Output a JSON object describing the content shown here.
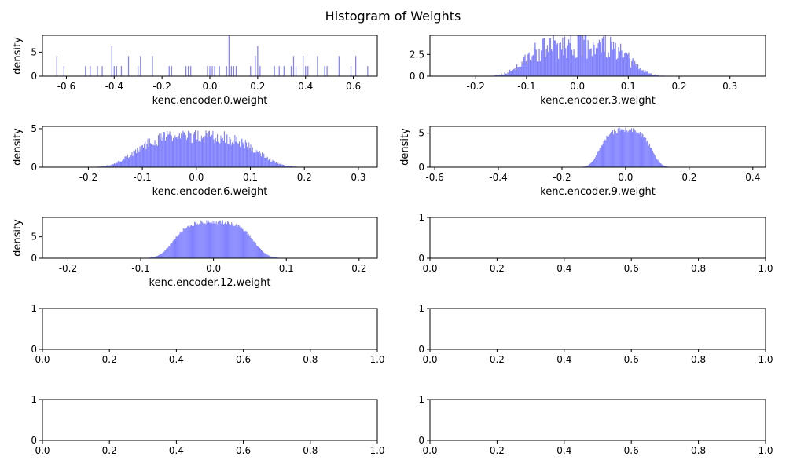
{
  "figure": {
    "title": "Histogram of Weights"
  },
  "chart_data": [
    {
      "type": "bar",
      "name": "hist-encoder-0",
      "xlabel": "kenc.encoder.0.weight",
      "ylabel": "density",
      "xlim": [
        -0.7,
        0.7
      ],
      "ylim": [
        0,
        8.5
      ],
      "xticks": [
        -0.6,
        -0.4,
        -0.2,
        0.0,
        0.2,
        0.4,
        0.6
      ],
      "yticks": [
        0,
        5
      ],
      "bar_color": "#8080ff",
      "bins": {
        "x": [
          -0.64,
          -0.61,
          -0.52,
          -0.5,
          -0.47,
          -0.45,
          -0.41,
          -0.4,
          -0.39,
          -0.37,
          -0.34,
          -0.3,
          -0.29,
          -0.24,
          -0.17,
          -0.16,
          -0.1,
          -0.09,
          -0.08,
          -0.01,
          0.0,
          0.01,
          0.02,
          0.04,
          0.07,
          0.08,
          0.09,
          0.1,
          0.11,
          0.17,
          0.19,
          0.2,
          0.21,
          0.27,
          0.29,
          0.31,
          0.34,
          0.35,
          0.36,
          0.39,
          0.4,
          0.41,
          0.45,
          0.48,
          0.49,
          0.54,
          0.59,
          0.61,
          0.66
        ],
        "y": [
          4.2,
          2.1,
          2.1,
          2.1,
          2.1,
          2.1,
          6.3,
          2.1,
          2.1,
          2.1,
          4.2,
          2.1,
          4.2,
          4.2,
          2.1,
          2.1,
          2.1,
          2.1,
          2.1,
          2.1,
          2.1,
          2.1,
          2.1,
          2.1,
          2.1,
          8.4,
          2.1,
          2.1,
          2.1,
          2.1,
          4.2,
          6.3,
          2.1,
          2.1,
          2.1,
          2.1,
          2.1,
          4.2,
          2.1,
          4.2,
          2.1,
          2.1,
          4.2,
          2.1,
          2.1,
          4.2,
          2.1,
          4.2,
          2.1
        ],
        "width": 0.004
      }
    },
    {
      "type": "bar",
      "name": "hist-encoder-3",
      "xlabel": "kenc.encoder.3.weight",
      "ylabel": "",
      "xlim": [
        -0.29,
        0.37
      ],
      "ylim": [
        0,
        4.7
      ],
      "xticks": [
        -0.2,
        -0.1,
        0.0,
        0.1,
        0.2,
        0.3
      ],
      "yticks": [
        0.0,
        2.5
      ],
      "bar_color": "#8080ff",
      "dist": {
        "xmin": -0.26,
        "xmax": 0.34,
        "center": 0.0,
        "peak": 3.5,
        "sigma": 0.095,
        "power": 4,
        "bins": 300,
        "noise": 0.45,
        "seed": 3
      }
    },
    {
      "type": "bar",
      "name": "hist-encoder-6",
      "xlabel": "kenc.encoder.6.weight",
      "ylabel": "density",
      "xlim": [
        -0.285,
        0.335
      ],
      "ylim": [
        0,
        5.3
      ],
      "xticks": [
        -0.2,
        -0.1,
        0.0,
        0.1,
        0.2,
        0.3
      ],
      "yticks": [
        0,
        5
      ],
      "bar_color": "#8080ff",
      "dist": {
        "xmin": -0.26,
        "xmax": 0.31,
        "center": 0.0,
        "peak": 3.9,
        "sigma": 0.105,
        "power": 4,
        "bins": 350,
        "noise": 0.22,
        "seed": 6
      }
    },
    {
      "type": "bar",
      "name": "hist-encoder-9",
      "xlabel": "kenc.encoder.9.weight",
      "ylabel": "density",
      "xlim": [
        -0.615,
        0.44
      ],
      "ylim": [
        0,
        6.0
      ],
      "xticks": [
        -0.6,
        -0.4,
        -0.2,
        0.0,
        0.2,
        0.4
      ],
      "yticks": [
        0,
        5
      ],
      "bar_color": "#8080ff",
      "dist": {
        "xmin": -0.55,
        "xmax": 0.4,
        "center": 0.0,
        "peak": 5.3,
        "sigma": 0.075,
        "power": 4,
        "bins": 400,
        "noise": 0.08,
        "seed": 9
      }
    },
    {
      "type": "bar",
      "name": "hist-encoder-12",
      "xlabel": "kenc.encoder.12.weight",
      "ylabel": "density",
      "xlim": [
        -0.235,
        0.225
      ],
      "ylim": [
        0,
        9.5
      ],
      "xticks": [
        -0.2,
        -0.1,
        0.0,
        0.1,
        0.2
      ],
      "yticks": [
        0,
        5
      ],
      "bar_color": "#8080ff",
      "dist": {
        "xmin": -0.21,
        "xmax": 0.21,
        "center": 0.0,
        "peak": 8.2,
        "sigma": 0.05,
        "power": 4,
        "bins": 380,
        "noise": 0.06,
        "seed": 12
      }
    },
    {
      "type": "bar",
      "name": "empty-axes-1",
      "xlabel": "",
      "ylabel": "",
      "xlim": [
        0,
        1
      ],
      "ylim": [
        0,
        1
      ],
      "xticks": [
        0.0,
        0.2,
        0.4,
        0.6,
        0.8,
        1.0
      ],
      "yticks": [
        0,
        1
      ]
    },
    {
      "type": "bar",
      "name": "empty-axes-2",
      "xlabel": "",
      "ylabel": "",
      "xlim": [
        0,
        1
      ],
      "ylim": [
        0,
        1
      ],
      "xticks": [
        0.0,
        0.2,
        0.4,
        0.6,
        0.8,
        1.0
      ],
      "yticks": [
        0,
        1
      ]
    },
    {
      "type": "bar",
      "name": "empty-axes-3",
      "xlabel": "",
      "ylabel": "",
      "xlim": [
        0,
        1
      ],
      "ylim": [
        0,
        1
      ],
      "xticks": [
        0.0,
        0.2,
        0.4,
        0.6,
        0.8,
        1.0
      ],
      "yticks": [
        0,
        1
      ]
    },
    {
      "type": "bar",
      "name": "empty-axes-4",
      "xlabel": "",
      "ylabel": "",
      "xlim": [
        0,
        1
      ],
      "ylim": [
        0,
        1
      ],
      "xticks": [
        0.0,
        0.2,
        0.4,
        0.6,
        0.8,
        1.0
      ],
      "yticks": [
        0,
        1
      ]
    },
    {
      "type": "bar",
      "name": "empty-axes-5",
      "xlabel": "",
      "ylabel": "",
      "xlim": [
        0,
        1
      ],
      "ylim": [
        0,
        1
      ],
      "xticks": [
        0.0,
        0.2,
        0.4,
        0.6,
        0.8,
        1.0
      ],
      "yticks": [
        0,
        1
      ]
    }
  ]
}
